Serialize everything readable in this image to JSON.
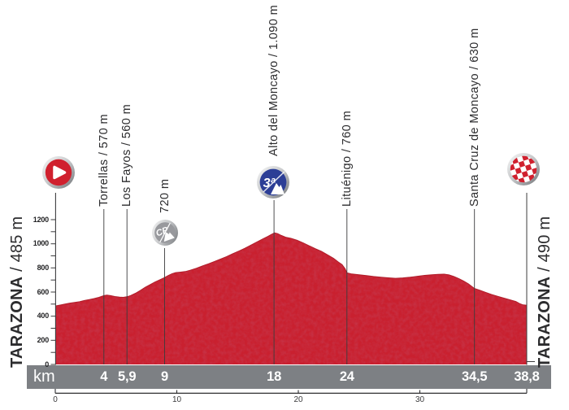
{
  "profile_bar": {
    "km_unit": "km"
  },
  "start": {
    "name": "TARAZONA",
    "elevation_suffix": " / 485 m"
  },
  "finish": {
    "name": "TARAZONA",
    "elevation_suffix": " / 490 m"
  },
  "icons": {
    "cat3_label": "3ª",
    "cp_label": "CP"
  },
  "waypoints": [
    {
      "km": 4,
      "km_label": "4",
      "label": "Torrellas / 570 m",
      "type": "town"
    },
    {
      "km": 5.9,
      "km_label": "5,9",
      "label": "Los Fayos / 560 m",
      "type": "town"
    },
    {
      "km": 9,
      "km_label": "9",
      "label": "720 m",
      "type": "cp"
    },
    {
      "km": 18,
      "km_label": "18",
      "label": "Alto del Moncayo / 1.090 m",
      "type": "cat3"
    },
    {
      "km": 24,
      "km_label": "24",
      "label": "Lituénigo / 760 m",
      "type": "town"
    },
    {
      "km": 34.5,
      "km_label": "34,5",
      "label": "Santa Cruz de Moncayo / 630 m",
      "type": "town"
    }
  ],
  "end_marker": {
    "km": 38.8,
    "km_label": "38,8"
  },
  "colors": {
    "profile_red": "#c9202f",
    "profile_edge": "#b01e2b",
    "bar_gray": "#7d8084",
    "climb_blue": "#2c3e96",
    "cp_gray": "#98999d",
    "icon_red": "#d0202e",
    "line_dark": "#3c3c3e"
  },
  "chart_data": {
    "type": "area",
    "title": "",
    "xlabel": "km",
    "ylabel": "m",
    "xlim": [
      0,
      38.8
    ],
    "ylim": [
      0,
      1300
    ],
    "grid": false,
    "y_axis_ticks_labeled": [
      0,
      200,
      400,
      600,
      800,
      1000,
      1200
    ],
    "y_axis_minor_step": 100,
    "x_ruler_ticks": [
      0,
      10,
      20,
      30
    ],
    "km_markers": [
      "4",
      "5,9",
      "9",
      "18",
      "24",
      "34,5",
      "38,8"
    ],
    "points_of_interest": [
      {
        "km": 0,
        "name": "TARAZONA",
        "elevation_m": 485,
        "marker": "stage-start"
      },
      {
        "km": 4,
        "name": "Torrellas",
        "elevation_m": 570
      },
      {
        "km": 5.9,
        "name": "Los Fayos",
        "elevation_m": 560
      },
      {
        "km": 9,
        "name": "",
        "elevation_m": 720,
        "marker": "cp-summit"
      },
      {
        "km": 18,
        "name": "Alto del Moncayo",
        "elevation_m": 1090,
        "marker": "category-3-climb"
      },
      {
        "km": 24,
        "name": "Lituénigo",
        "elevation_m": 760
      },
      {
        "km": 34.5,
        "name": "Santa Cruz de Moncayo",
        "elevation_m": 630
      },
      {
        "km": 38.8,
        "name": "TARAZONA",
        "elevation_m": 490,
        "marker": "stage-finish"
      }
    ],
    "profile": [
      [
        0,
        485
      ],
      [
        0.4,
        492
      ],
      [
        0.8,
        500
      ],
      [
        1.2,
        508
      ],
      [
        1.6,
        514
      ],
      [
        2.0,
        520
      ],
      [
        2.4,
        530
      ],
      [
        2.8,
        537
      ],
      [
        3.2,
        546
      ],
      [
        3.6,
        556
      ],
      [
        4.0,
        570
      ],
      [
        4.25,
        575
      ],
      [
        4.55,
        570
      ],
      [
        4.9,
        563
      ],
      [
        5.3,
        558
      ],
      [
        5.6,
        556
      ],
      [
        5.9,
        561
      ],
      [
        6.2,
        571
      ],
      [
        6.6,
        590
      ],
      [
        7.0,
        613
      ],
      [
        7.4,
        639
      ],
      [
        7.8,
        661
      ],
      [
        8.2,
        683
      ],
      [
        8.6,
        702
      ],
      [
        9.0,
        720
      ],
      [
        9.3,
        737
      ],
      [
        9.6,
        751
      ],
      [
        9.9,
        761
      ],
      [
        10.3,
        765
      ],
      [
        10.7,
        770
      ],
      [
        11.1,
        781
      ],
      [
        11.6,
        797
      ],
      [
        12.1,
        816
      ],
      [
        12.6,
        834
      ],
      [
        13.1,
        853
      ],
      [
        13.6,
        873
      ],
      [
        14.1,
        894
      ],
      [
        14.6,
        917
      ],
      [
        15.1,
        939
      ],
      [
        15.6,
        963
      ],
      [
        16.1,
        989
      ],
      [
        16.6,
        1015
      ],
      [
        17.1,
        1041
      ],
      [
        17.5,
        1061
      ],
      [
        17.8,
        1078
      ],
      [
        18.05,
        1090
      ],
      [
        18.3,
        1084
      ],
      [
        18.6,
        1069
      ],
      [
        19.0,
        1053
      ],
      [
        19.4,
        1045
      ],
      [
        19.9,
        1029
      ],
      [
        20.4,
        1007
      ],
      [
        20.9,
        983
      ],
      [
        21.4,
        959
      ],
      [
        21.9,
        937
      ],
      [
        22.4,
        909
      ],
      [
        22.9,
        879
      ],
      [
        23.3,
        849
      ],
      [
        23.6,
        828
      ],
      [
        23.85,
        794
      ],
      [
        24.0,
        760
      ],
      [
        24.4,
        750
      ],
      [
        25.0,
        743
      ],
      [
        25.6,
        736
      ],
      [
        26.2,
        729
      ],
      [
        26.8,
        723
      ],
      [
        27.4,
        718
      ],
      [
        28.0,
        714
      ],
      [
        28.6,
        717
      ],
      [
        29.2,
        723
      ],
      [
        29.8,
        731
      ],
      [
        30.4,
        738
      ],
      [
        31.0,
        743
      ],
      [
        31.5,
        747
      ],
      [
        32.0,
        748
      ],
      [
        32.4,
        742
      ],
      [
        32.8,
        729
      ],
      [
        33.2,
        712
      ],
      [
        33.6,
        692
      ],
      [
        34.0,
        668
      ],
      [
        34.5,
        630
      ],
      [
        34.9,
        616
      ],
      [
        35.4,
        598
      ],
      [
        35.9,
        580
      ],
      [
        36.4,
        565
      ],
      [
        36.9,
        550
      ],
      [
        37.4,
        536
      ],
      [
        37.9,
        522
      ],
      [
        38.2,
        505
      ],
      [
        38.45,
        495
      ],
      [
        38.8,
        490
      ]
    ]
  }
}
